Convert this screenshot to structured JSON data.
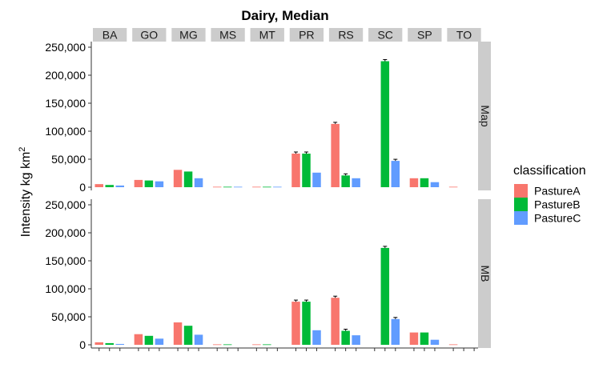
{
  "chart_data": {
    "type": "bar",
    "title": "Dairy, Median",
    "ylabel": "Intensity kg km",
    "ylabel_sup": "2",
    "xlabel": "",
    "ylim": [
      0,
      260000
    ],
    "yticks": [
      0,
      50000,
      100000,
      150000,
      200000,
      250000
    ],
    "ytick_labels": [
      "0",
      "50,000",
      "100,000",
      "150,000",
      "200,000",
      "250,000"
    ],
    "facet_columns": [
      "BA",
      "GO",
      "MG",
      "MS",
      "MT",
      "PR",
      "RS",
      "SC",
      "SP",
      "TO"
    ],
    "facet_rows": [
      "Map",
      "MB"
    ],
    "legend": {
      "title": "classification",
      "placement": "right",
      "entries": [
        "PastureA",
        "PastureB",
        "PastureC"
      ]
    },
    "colors": {
      "PastureA": "#F8766D",
      "PastureB": "#00BA38",
      "PastureC": "#619CFF",
      "strip": "#cccccc"
    },
    "panels": [
      {
        "row": "Map",
        "values": {
          "BA": [
            5500,
            4000,
            3000
          ],
          "GO": [
            13000,
            12000,
            10500
          ],
          "MG": [
            31000,
            28000,
            16000
          ],
          "MS": [
            800,
            800,
            800
          ],
          "MT": [
            800,
            800,
            800
          ],
          "PR": [
            60000,
            60000,
            26000
          ],
          "RS": [
            113000,
            21000,
            16000
          ],
          "SC": [
            0,
            225000,
            47000
          ],
          "SP": [
            16000,
            16000,
            9000
          ],
          "TO": [
            800,
            0,
            0
          ]
        },
        "error_bars": {
          "PR": [
            true,
            true,
            false
          ],
          "RS": [
            true,
            true,
            false
          ],
          "SC": [
            false,
            true,
            true
          ]
        }
      },
      {
        "row": "MB",
        "values": {
          "BA": [
            4500,
            3000,
            1500
          ],
          "GO": [
            19000,
            16000,
            11000
          ],
          "MG": [
            40000,
            34000,
            18000
          ],
          "MS": [
            800,
            800,
            0
          ],
          "MT": [
            800,
            800,
            0
          ],
          "PR": [
            77000,
            77000,
            26000
          ],
          "RS": [
            84000,
            25000,
            17000
          ],
          "SC": [
            0,
            173000,
            46000
          ],
          "SP": [
            22000,
            22000,
            9000
          ],
          "TO": [
            800,
            0,
            0
          ]
        },
        "error_bars": {
          "PR": [
            true,
            true,
            false
          ],
          "RS": [
            true,
            true,
            false
          ],
          "SC": [
            false,
            true,
            true
          ]
        }
      }
    ]
  }
}
